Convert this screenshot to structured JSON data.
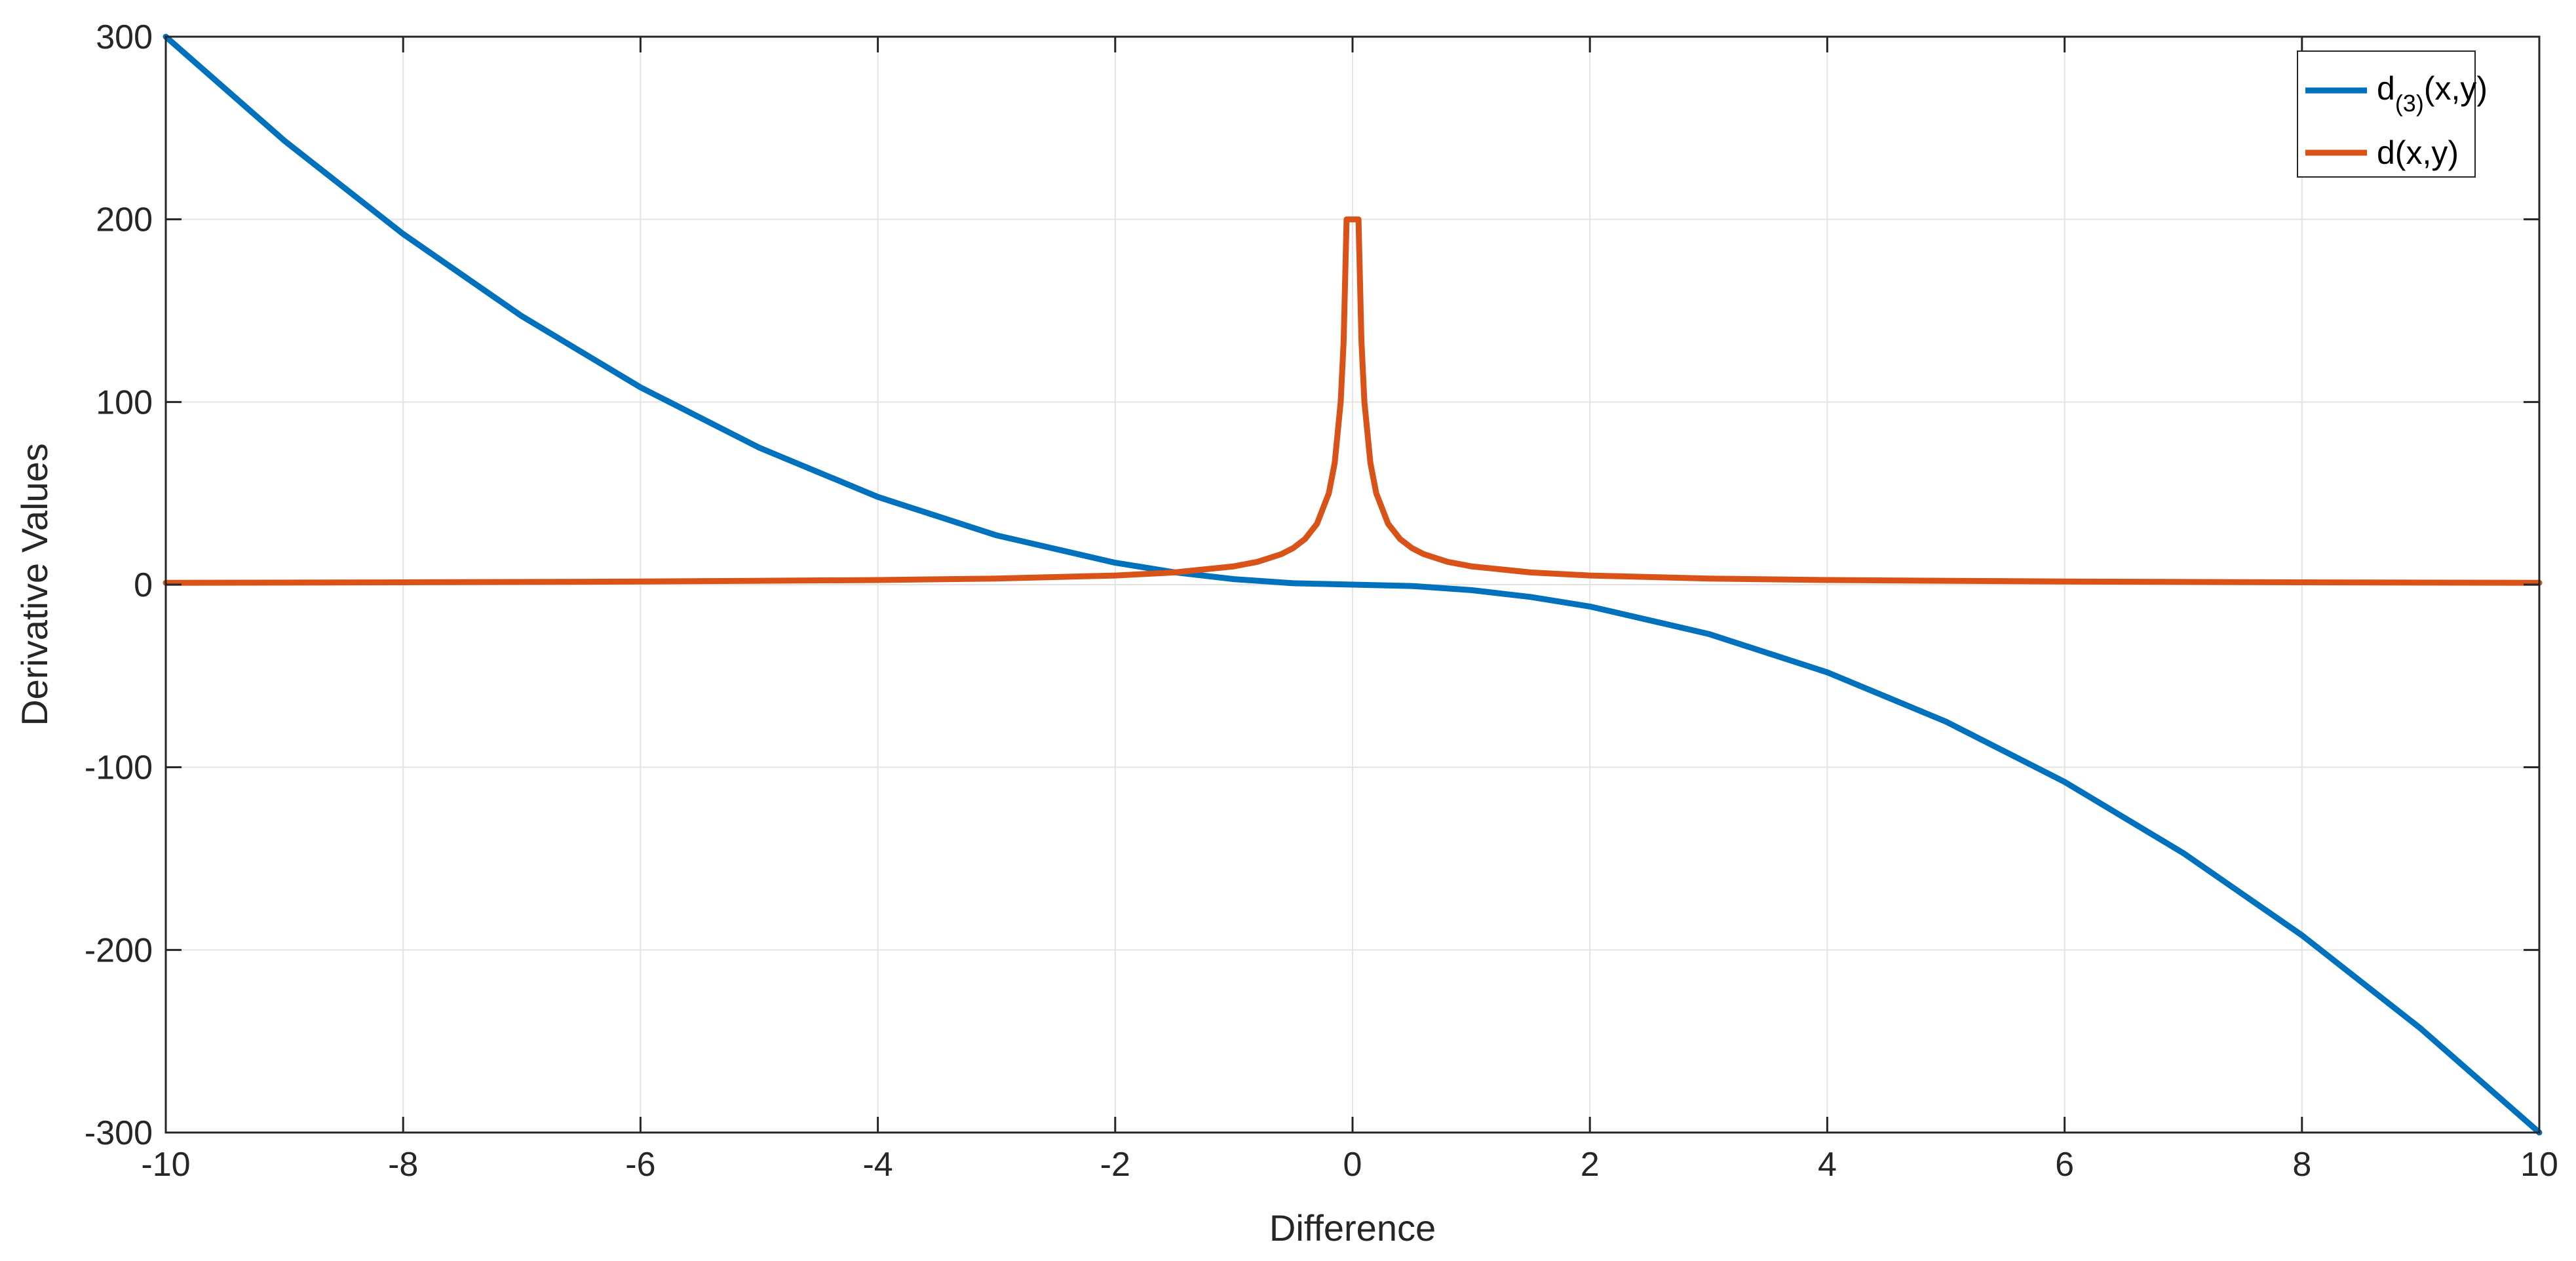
{
  "chart_data": {
    "type": "line",
    "title": "",
    "xlabel": "Difference",
    "ylabel": "Derivative Values",
    "xlim": [
      -10,
      10
    ],
    "ylim": [
      -300,
      300
    ],
    "xticks": [
      -10,
      -8,
      -6,
      -4,
      -2,
      0,
      2,
      4,
      6,
      8,
      10
    ],
    "yticks": [
      -300,
      -200,
      -100,
      0,
      100,
      200,
      300
    ],
    "xtick_labels": [
      "-10",
      "-8",
      "-6",
      "-4",
      "-2",
      "0",
      "2",
      "4",
      "6",
      "8",
      "10"
    ],
    "ytick_labels": [
      "-300",
      "-200",
      "-100",
      "0",
      "100",
      "200",
      "300"
    ],
    "grid": true,
    "legend_position": "top-right",
    "legend": {
      "entry1_main": "d",
      "entry1_sub": "(3)",
      "entry1_tail": "(x,y)",
      "entry2": "d(x,y)"
    },
    "series": [
      {
        "color": "#0072BD",
        "x": [
          -10,
          -9,
          -8,
          -7,
          -6,
          -5,
          -4,
          -3,
          -2,
          -1.5,
          -1,
          -0.5,
          0,
          0.5,
          1,
          1.5,
          2,
          3,
          4,
          5,
          6,
          7,
          8,
          9,
          10
        ],
        "y": [
          300,
          243,
          192,
          147,
          108,
          75,
          48,
          27,
          12,
          6.75,
          3,
          0.75,
          0,
          -0.75,
          -3,
          -6.75,
          -12,
          -27,
          -48,
          -75,
          -108,
          -147,
          -192,
          -243,
          -300
        ]
      },
      {
        "color": "#D95319",
        "x": [
          -10,
          -8,
          -6,
          -4,
          -3,
          -2,
          -1.5,
          -1,
          -0.8,
          -0.6,
          -0.5,
          -0.4,
          -0.3,
          -0.2,
          -0.15,
          -0.1,
          -0.075,
          -0.05,
          0.05,
          0.075,
          0.1,
          0.15,
          0.2,
          0.3,
          0.4,
          0.5,
          0.6,
          0.8,
          1,
          1.5,
          2,
          3,
          4,
          6,
          8,
          10
        ],
        "y": [
          1,
          1.25,
          1.67,
          2.5,
          3.33,
          5,
          6.67,
          10,
          12.5,
          16.7,
          20,
          25,
          33.3,
          50,
          66.7,
          100,
          133,
          200,
          200,
          133,
          100,
          66.7,
          50,
          33.3,
          25,
          20,
          16.7,
          12.5,
          10,
          6.67,
          5,
          3.33,
          2.5,
          1.67,
          1.25,
          1
        ]
      }
    ]
  },
  "colors": {
    "series1": "#0072BD",
    "series2": "#D95319",
    "grid": "#e3e3e3",
    "axis": "#262626"
  }
}
